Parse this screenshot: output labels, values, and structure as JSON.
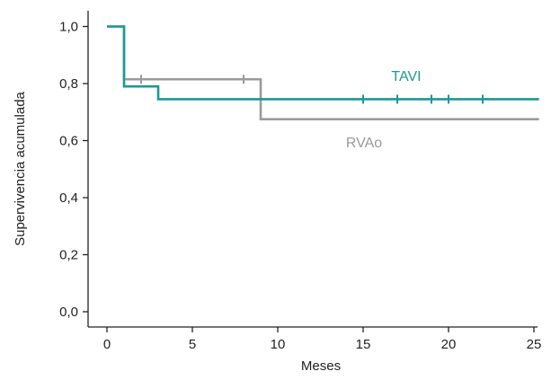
{
  "chart_data": {
    "type": "line",
    "xlabel": "Meses",
    "ylabel": "Supervivencia acumulada",
    "xlim": [
      -1,
      25.3
    ],
    "ylim": [
      -0.04,
      1.05
    ],
    "x_ticks": [
      0,
      5,
      10,
      15,
      20,
      25
    ],
    "y_ticks": [
      0.0,
      0.2,
      0.4,
      0.6,
      0.8,
      1.0
    ],
    "x_tick_labels": [
      "0",
      "5",
      "10",
      "15",
      "20",
      "25"
    ],
    "y_tick_labels": [
      "0,0",
      "0,2",
      "0,4",
      "0,6",
      "0,8",
      "1,0"
    ],
    "series": [
      {
        "name": "TAVI",
        "color": "#1a9a93",
        "steps": [
          [
            0,
            1.0
          ],
          [
            1,
            0.79
          ],
          [
            3,
            0.745
          ],
          [
            25.3,
            0.745
          ]
        ],
        "censored": [
          [
            15,
            0.745
          ],
          [
            17,
            0.745
          ],
          [
            19,
            0.745
          ],
          [
            20,
            0.745
          ],
          [
            22,
            0.745
          ]
        ]
      },
      {
        "name": "RVAo",
        "color": "#9a9a9a",
        "steps": [
          [
            0,
            1.0
          ],
          [
            1,
            0.815
          ],
          [
            9,
            0.675
          ],
          [
            25.3,
            0.675
          ]
        ],
        "censored": [
          [
            2,
            0.815
          ],
          [
            8,
            0.815
          ]
        ]
      }
    ],
    "grid": false,
    "legend": "inline"
  }
}
